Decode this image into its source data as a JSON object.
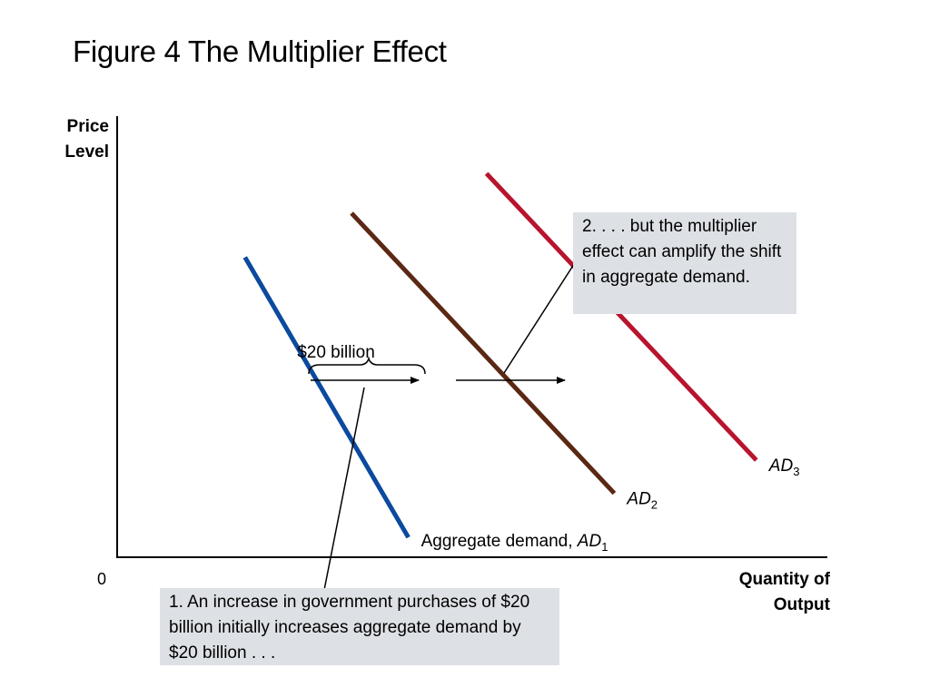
{
  "title": "Figure 4 The Multiplier Effect",
  "chart_data": {
    "type": "line",
    "title": "Figure 4 The Multiplier Effect",
    "ylabel_lines": [
      "Price",
      "Level"
    ],
    "xlabel_lines": [
      "Quantity of",
      "Output"
    ],
    "origin_label": "0",
    "grid": false,
    "series": [
      {
        "name": "Aggregate demand, AD1",
        "label_prefix": "Aggregate demand, ",
        "label_main": "AD",
        "label_sub": "1",
        "color": "#0b4a9e",
        "points": [
          [
            1.8,
            6.8
          ],
          [
            4.1,
            0.45
          ]
        ]
      },
      {
        "name": "AD2",
        "label_prefix": "",
        "label_main": "AD",
        "label_sub": "2",
        "color": "#5b2814",
        "points": [
          [
            3.3,
            7.8
          ],
          [
            7.0,
            1.45
          ]
        ]
      },
      {
        "name": "AD3",
        "label_prefix": "",
        "label_main": "AD",
        "label_sub": "3",
        "color": "#b8142e",
        "points": [
          [
            5.2,
            8.7
          ],
          [
            9.0,
            2.2
          ]
        ]
      }
    ],
    "annotations": {
      "brace_label": "$20 billion",
      "note_1": "1. An increase in government purchases of $20 billion initially increases aggregate demand by $20 billion . . .",
      "note_2": "2. . . . but the multiplier effect can amplify the shift in aggregate demand."
    }
  }
}
